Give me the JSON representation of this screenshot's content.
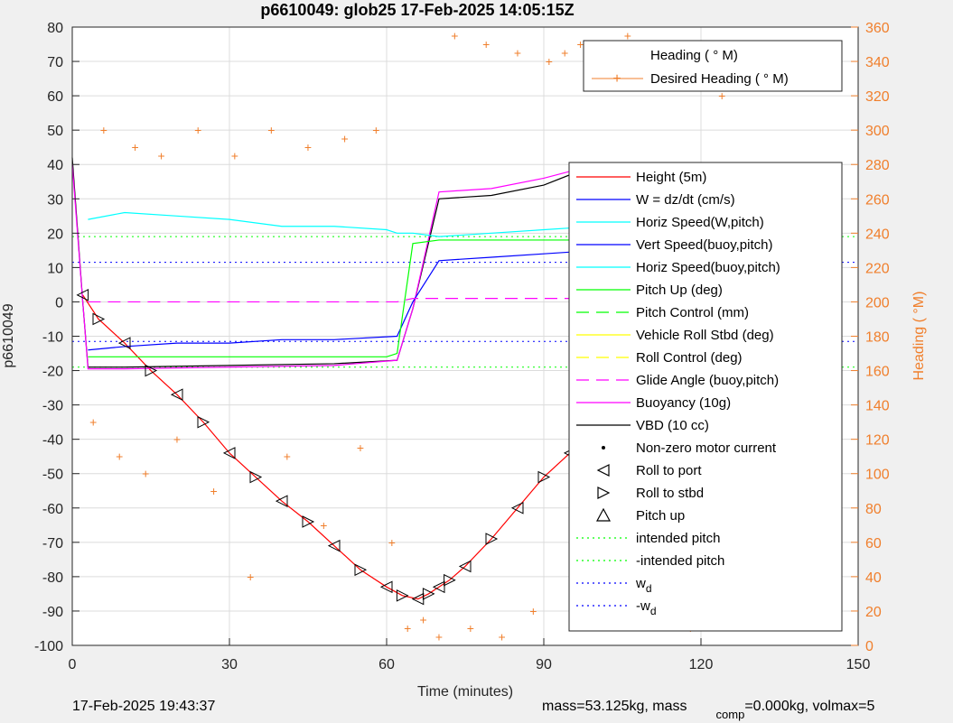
{
  "title": "p6610049: glob25 17-Feb-2025 14:05:15Z",
  "footer": {
    "left": "17-Feb-2025 19:43:37",
    "right_main": "mass=53.125kg, mass",
    "right_sub": "comp",
    "right_tail": "=0.000kg, volmax=5"
  },
  "chart_data": {
    "type": "line",
    "title": "p6610049: glob25 17-Feb-2025 14:05:15Z",
    "xlabel": "Time (minutes)",
    "ylabel": "p6610049",
    "y2label": "Heading (  °M)",
    "xlim": [
      0,
      150
    ],
    "ylim": [
      -100,
      80
    ],
    "y2lim": [
      0,
      360
    ],
    "xticks": [
      0,
      30,
      60,
      90,
      120,
      150
    ],
    "yticks": [
      -100,
      -90,
      -80,
      -70,
      -60,
      -50,
      -40,
      -30,
      -20,
      -10,
      0,
      10,
      20,
      30,
      40,
      50,
      60,
      70,
      80
    ],
    "y2ticks": [
      0,
      20,
      40,
      60,
      80,
      100,
      120,
      140,
      160,
      180,
      200,
      220,
      240,
      260,
      280,
      300,
      320,
      340,
      360
    ],
    "grid": true,
    "colors": {
      "height": "#ff0000",
      "w": "#0000ff",
      "horiz_speed": "#00ffff",
      "pitch_up": "#00ff00",
      "roll": "#ffff00",
      "buoyancy": "#ff00ff",
      "vbd": "#000000",
      "heading": "#f07f2c"
    },
    "heading_legend": {
      "placement": "top-right",
      "entries": [
        "Heading (  ° M)",
        "Desired Heading (    ° M)"
      ]
    },
    "legend": {
      "placement": "right",
      "entries": [
        "Height (5m)",
        "W = dz/dt (cm/s)",
        "Horiz Speed(W,pitch)",
        "Vert Speed(buoy,pitch)",
        "Horiz Speed(buoy,pitch)",
        "Pitch Up (deg)",
        "Pitch Control (mm)",
        "Vehicle Roll Stbd (deg)",
        "Roll Control (deg)",
        "Glide Angle (buoy,pitch)",
        "Buoyancy (10g)",
        "VBD (10 cc)",
        "Non-zero motor current",
        "Roll to port",
        "Roll to stbd",
        "Pitch up",
        "intended pitch",
        "-intended pitch",
        "w",
        "-w"
      ],
      "subscript_d": "d"
    },
    "series": [
      {
        "name": "Height (5m)",
        "x": [
          2,
          5,
          10,
          15,
          20,
          25,
          30,
          35,
          40,
          45,
          50,
          55,
          60,
          63,
          66,
          68,
          70,
          72,
          75,
          80,
          85,
          90,
          95,
          100,
          105,
          110,
          115,
          120,
          123,
          125
        ],
        "y": [
          2,
          -5,
          -12,
          -20,
          -27,
          -35,
          -44,
          -51,
          -58,
          -64,
          -71,
          -78,
          -83,
          -85.5,
          -86.5,
          -85,
          -83,
          -81,
          -77,
          -69,
          -60,
          -51,
          -44,
          -38,
          -31,
          -24,
          -16,
          -8,
          -3,
          1
        ]
      },
      {
        "name": "VBD (10 cc)",
        "x": [
          0,
          2,
          3,
          10,
          30,
          50,
          62,
          65,
          70,
          80,
          90,
          95,
          100,
          110,
          120,
          124
        ],
        "y": [
          42,
          0,
          -19,
          -19,
          -18.5,
          -18,
          -17,
          -2,
          30,
          31,
          34,
          37,
          38,
          38,
          38,
          38
        ]
      },
      {
        "name": "Buoyancy (10g)",
        "x": [
          0,
          2,
          3,
          10,
          30,
          50,
          62,
          65,
          70,
          80,
          90,
          95,
          100,
          110,
          120,
          124
        ],
        "y": [
          40,
          0,
          -19.5,
          -19.5,
          -19,
          -18.5,
          -17,
          -2,
          32,
          33,
          36,
          38,
          39,
          39,
          39,
          38
        ]
      },
      {
        "name": "W = dz/dt (cm/s)",
        "x": [
          3,
          10,
          20,
          30,
          40,
          50,
          62,
          65,
          70,
          80,
          90,
          100,
          110,
          120,
          124
        ],
        "y": [
          -14,
          -13,
          -12,
          -12,
          -11,
          -11,
          -10,
          0,
          12,
          13,
          14,
          15,
          15,
          16,
          17
        ]
      },
      {
        "name": "Horiz Speed(W,pitch)",
        "x": [
          3,
          10,
          20,
          30,
          40,
          50,
          60,
          62,
          65,
          70,
          80,
          90,
          100,
          110,
          120,
          124
        ],
        "y": [
          24,
          26,
          25,
          24,
          22,
          22,
          21,
          20,
          20,
          19,
          20,
          21,
          22,
          25,
          29,
          30
        ]
      },
      {
        "name": "Pitch Up (deg)",
        "x": [
          3,
          10,
          20,
          30,
          40,
          50,
          60,
          62,
          65,
          70,
          80,
          90,
          100,
          110,
          120,
          124
        ],
        "y": [
          -16,
          -16,
          -16,
          -16,
          -16,
          -16,
          -16,
          -15,
          17,
          18,
          18,
          18,
          18,
          18,
          18,
          18
        ]
      },
      {
        "name": "Glide Angle (buoy,pitch)",
        "x": [
          3,
          62,
          65,
          124
        ],
        "y": [
          0,
          0,
          1,
          1
        ]
      },
      {
        "name": "intended pitch",
        "x": [
          0,
          150
        ],
        "y": [
          19,
          19
        ]
      },
      {
        "name": "-intended pitch",
        "x": [
          0,
          150
        ],
        "y": [
          -19,
          -19
        ]
      },
      {
        "name": "w",
        "x": [
          0,
          150
        ],
        "y": [
          11.5,
          11.5
        ]
      },
      {
        "name": "-w",
        "x": [
          0,
          150
        ],
        "y": [
          -11.5,
          -11.5
        ]
      }
    ],
    "heading_series": {
      "name": "Heading (  ° M)",
      "x": [
        4,
        6,
        9,
        12,
        14,
        17,
        20,
        24,
        27,
        31,
        34,
        38,
        41,
        45,
        48,
        52,
        55,
        58,
        61,
        64,
        67,
        70,
        73,
        76,
        79,
        82,
        85,
        88,
        91,
        94,
        97,
        100,
        103,
        106,
        109,
        112,
        115,
        118,
        121,
        124
      ],
      "y": [
        130,
        300,
        110,
        290,
        100,
        285,
        120,
        300,
        90,
        285,
        40,
        300,
        110,
        290,
        70,
        295,
        115,
        300,
        60,
        10,
        15,
        5,
        355,
        10,
        350,
        5,
        345,
        20,
        340,
        345,
        350,
        335,
        340,
        355,
        30,
        345,
        20,
        10,
        330,
        320
      ]
    }
  }
}
